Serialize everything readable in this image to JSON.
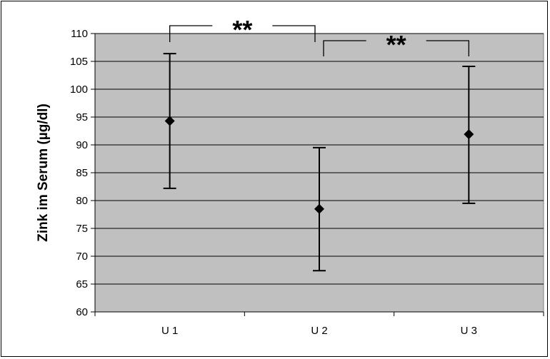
{
  "chart_data": {
    "type": "scatter",
    "title": "",
    "xlabel": "",
    "ylabel": "Zink im Serum (µg/dl)",
    "categories": [
      "U 1",
      "U 2",
      "U 3"
    ],
    "series": [
      {
        "values": [
          94.3,
          78.5,
          91.9
        ],
        "error_low": [
          82.2,
          67.4,
          79.5
        ],
        "error_high": [
          106.4,
          89.5,
          104.1
        ]
      }
    ],
    "ylim": [
      60,
      110
    ],
    "yticks": [
      60,
      65,
      70,
      75,
      80,
      85,
      90,
      95,
      100,
      105,
      110
    ],
    "grid": true,
    "legend": "none",
    "plot_background": "#c0c0c0",
    "annotations": [
      {
        "text": "**",
        "from": "U 1",
        "to": "U 2"
      },
      {
        "text": "**",
        "from": "U 2",
        "to": "U 3"
      }
    ]
  }
}
